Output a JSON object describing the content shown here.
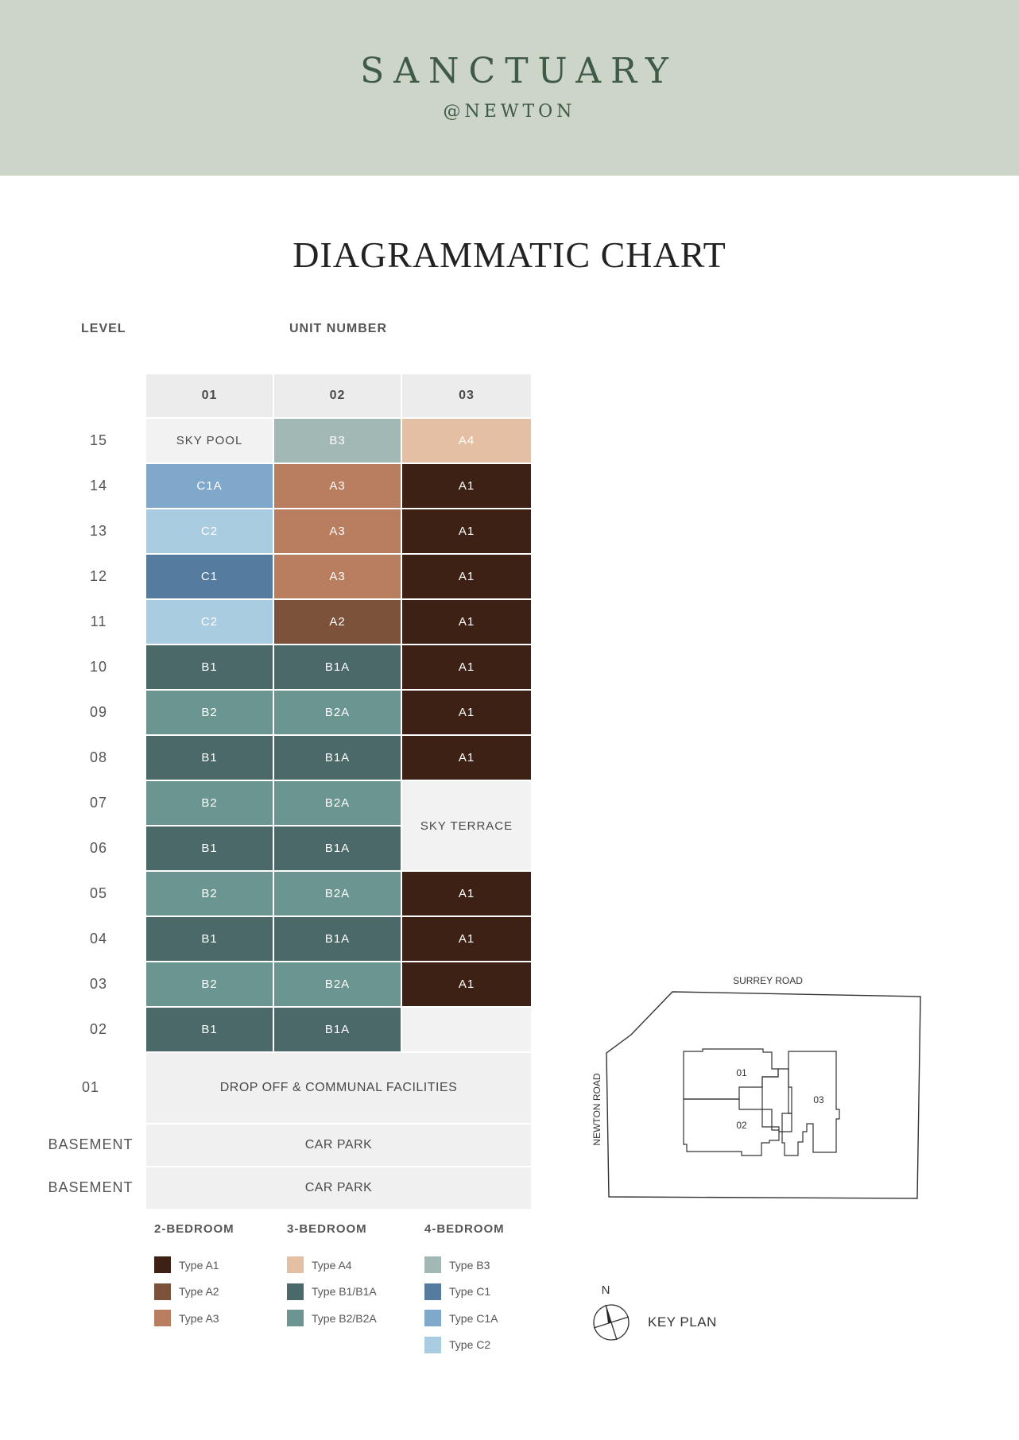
{
  "brand": {
    "name": "SANCTUARY",
    "sub": "@NEWTON"
  },
  "title": "DIAGRAMMATIC CHART",
  "labels": {
    "level": "LEVEL",
    "unit_number": "UNIT  NUMBER"
  },
  "units": [
    "01",
    "02",
    "03"
  ],
  "colors": {
    "header_bg": "#ccd5c7",
    "A1": "#3e2115",
    "A2": "#7d523b",
    "A3": "#b97d5f",
    "A4": "#e4bfa3",
    "B1": "#4a6968",
    "B2": "#6b9590",
    "B3": "#a1b8b5",
    "C1": "#557b9e",
    "C1A": "#80a8cb",
    "C2": "#aacce1",
    "empty": "#f2f2f2"
  },
  "floors": [
    {
      "level": "15",
      "cells": [
        "SKY POOL",
        "B3",
        "A4"
      ]
    },
    {
      "level": "14",
      "cells": [
        "C1A",
        "A3",
        "A1"
      ]
    },
    {
      "level": "13",
      "cells": [
        "C2",
        "A3",
        "A1"
      ]
    },
    {
      "level": "12",
      "cells": [
        "C1",
        "A3",
        "A1"
      ]
    },
    {
      "level": "11",
      "cells": [
        "C2",
        "A2",
        "A1"
      ]
    },
    {
      "level": "10",
      "cells": [
        "B1",
        "B1A",
        "A1"
      ]
    },
    {
      "level": "09",
      "cells": [
        "B2",
        "B2A",
        "A1"
      ]
    },
    {
      "level": "08",
      "cells": [
        "B1",
        "B1A",
        "A1"
      ]
    },
    {
      "level": "07",
      "cells": [
        "B2",
        "B2A",
        "SKY TERRACE"
      ]
    },
    {
      "level": "06",
      "cells": [
        "B1",
        "B1A",
        null
      ]
    },
    {
      "level": "05",
      "cells": [
        "B2",
        "B2A",
        "A1"
      ]
    },
    {
      "level": "04",
      "cells": [
        "B1",
        "B1A",
        "A1"
      ]
    },
    {
      "level": "03",
      "cells": [
        "B2",
        "B2A",
        "A1"
      ]
    },
    {
      "level": "02",
      "cells": [
        "B1",
        "B1A",
        ""
      ]
    }
  ],
  "lower_levels": [
    {
      "level": "01",
      "label": "DROP OFF & COMMUNAL FACILITIES"
    },
    {
      "level": "BASEMENT",
      "label": "CAR PARK"
    },
    {
      "level": "BASEMENT",
      "label": "CAR PARK"
    }
  ],
  "legend": [
    {
      "heading": "2-BEDROOM",
      "items": [
        {
          "label": "Type A1",
          "color_key": "A1"
        },
        {
          "label": "Type A2",
          "color_key": "A2"
        },
        {
          "label": "Type A3",
          "color_key": "A3"
        }
      ]
    },
    {
      "heading": "3-BEDROOM",
      "items": [
        {
          "label": "Type A4",
          "color_key": "A4"
        },
        {
          "label": "Type B1/B1A",
          "color_key": "B1"
        },
        {
          "label": "Type B2/B2A",
          "color_key": "B2"
        }
      ]
    },
    {
      "heading": "4-BEDROOM",
      "items": [
        {
          "label": "Type B3",
          "color_key": "B3"
        },
        {
          "label": "Type C1",
          "color_key": "C1"
        },
        {
          "label": "Type C1A",
          "color_key": "C1A"
        },
        {
          "label": "Type C2",
          "color_key": "C2"
        }
      ]
    }
  ],
  "keyplan": {
    "road_top": "SURREY ROAD",
    "road_left": "NEWTON ROAD",
    "block_labels": [
      "01",
      "02",
      "03"
    ],
    "compass": "N",
    "title": "KEY PLAN"
  }
}
